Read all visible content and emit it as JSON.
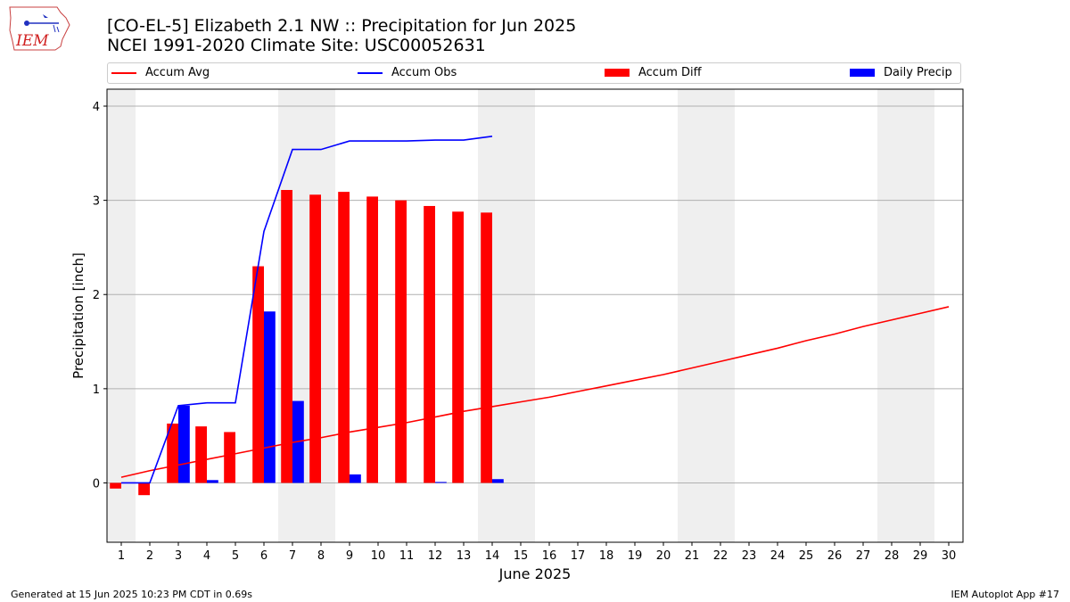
{
  "header": {
    "title_line1": "[CO-EL-5] Elizabeth 2.1 NW :: Precipitation for Jun 2025",
    "title_line2": "NCEI 1991-2020 Climate Site: USC00052631",
    "logo_text": "IEM",
    "logo_icon": "iem-iowa-logo-icon"
  },
  "legend": {
    "placement": "top",
    "items": [
      {
        "label": "Accum Avg",
        "kind": "line",
        "color": "#ff0000"
      },
      {
        "label": "Accum Obs",
        "kind": "line",
        "color": "#0000ff"
      },
      {
        "label": "Accum Diff",
        "kind": "bar",
        "color": "#ff0000"
      },
      {
        "label": "Daily Precip",
        "kind": "bar",
        "color": "#0000ff"
      }
    ]
  },
  "footer": {
    "left": "Generated at 15 Jun 2025 10:23 PM CDT in 0.69s",
    "right": "IEM Autoplot App #17"
  },
  "chart_data": {
    "type": "bar",
    "xlabel": "June 2025",
    "ylabel": "Precipitation [inch]",
    "xlim": [
      0.5,
      30.5
    ],
    "ylim": [
      -0.63,
      4.18
    ],
    "grid": "horizontal",
    "categories": [
      1,
      2,
      3,
      4,
      5,
      6,
      7,
      8,
      9,
      10,
      11,
      12,
      13,
      14,
      15,
      16,
      17,
      18,
      19,
      20,
      21,
      22,
      23,
      24,
      25,
      26,
      27,
      28,
      29,
      30
    ],
    "x_tick_labels": [
      "1",
      "2",
      "3",
      "4",
      "5",
      "6",
      "7",
      "8",
      "9",
      "10",
      "11",
      "12",
      "13",
      "14",
      "15",
      "16",
      "17",
      "18",
      "19",
      "20",
      "21",
      "22",
      "23",
      "24",
      "25",
      "26",
      "27",
      "28",
      "29",
      "30"
    ],
    "y_ticks": [
      0,
      1,
      2,
      3,
      4
    ],
    "y_tick_labels": [
      "0",
      "1",
      "2",
      "3",
      "4"
    ],
    "weekend_shading": [
      [
        0.5,
        1.5
      ],
      [
        6.5,
        8.5
      ],
      [
        13.5,
        15.5
      ],
      [
        20.5,
        22.5
      ],
      [
        27.5,
        29.5
      ]
    ],
    "shading_color": "#efefef",
    "series": [
      {
        "name": "Accum Avg",
        "kind": "line",
        "color": "#ff0000",
        "x": [
          1,
          2,
          3,
          4,
          5,
          6,
          7,
          8,
          9,
          10,
          11,
          12,
          13,
          14,
          15,
          16,
          17,
          18,
          19,
          20,
          21,
          22,
          23,
          24,
          25,
          26,
          27,
          28,
          29,
          30
        ],
        "values": [
          0.06,
          0.13,
          0.19,
          0.25,
          0.31,
          0.37,
          0.43,
          0.48,
          0.54,
          0.59,
          0.64,
          0.7,
          0.76,
          0.81,
          0.86,
          0.91,
          0.97,
          1.03,
          1.09,
          1.15,
          1.22,
          1.29,
          1.36,
          1.43,
          1.51,
          1.58,
          1.66,
          1.73,
          1.8,
          1.87
        ]
      },
      {
        "name": "Accum Obs",
        "kind": "line",
        "color": "#0000ff",
        "x": [
          1,
          2,
          3,
          4,
          5,
          6,
          7,
          8,
          9,
          10,
          11,
          12,
          13,
          14
        ],
        "values": [
          0.0,
          0.0,
          0.82,
          0.85,
          0.85,
          2.67,
          3.54,
          3.54,
          3.63,
          3.63,
          3.63,
          3.64,
          3.64,
          3.68
        ]
      },
      {
        "name": "Accum Diff",
        "kind": "bar",
        "color": "#ff0000",
        "x": [
          1,
          2,
          3,
          4,
          5,
          6,
          7,
          8,
          9,
          10,
          11,
          12,
          13,
          14
        ],
        "values": [
          -0.06,
          -0.13,
          0.63,
          0.6,
          0.54,
          2.3,
          3.11,
          3.06,
          3.09,
          3.04,
          3.0,
          2.94,
          2.88,
          2.87
        ]
      },
      {
        "name": "Daily Precip",
        "kind": "bar",
        "color": "#0000ff",
        "x": [
          1,
          2,
          3,
          4,
          5,
          6,
          7,
          8,
          9,
          10,
          11,
          12,
          13,
          14
        ],
        "values": [
          0.0,
          0.0,
          0.82,
          0.03,
          0.0,
          1.82,
          0.87,
          0.0,
          0.09,
          0.0,
          0.0,
          0.01,
          0.0,
          0.04
        ]
      }
    ]
  }
}
